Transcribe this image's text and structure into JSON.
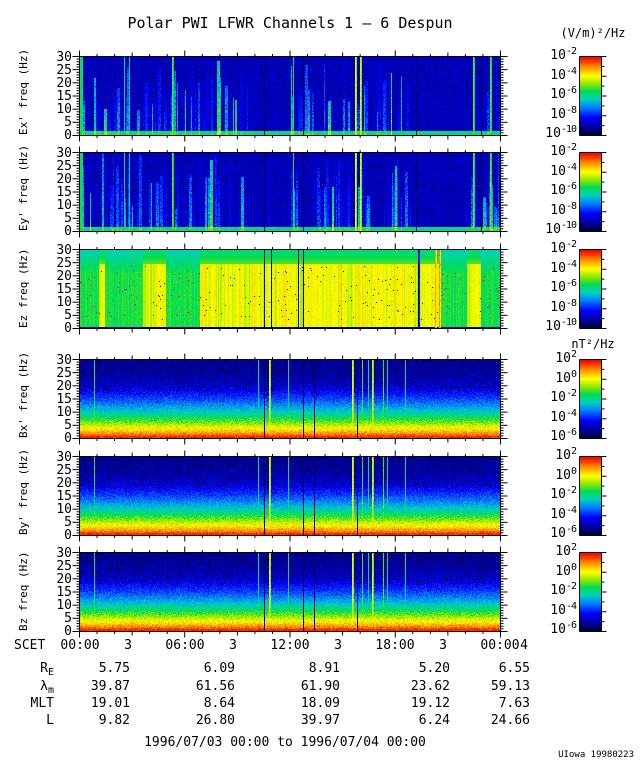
{
  "title": "Polar PWI LFWR Channels 1 — 6 Despun",
  "credit": "UIowa 19980223",
  "colorbar_units": {
    "electric": "(V/m)²/Hz",
    "magnetic": "nT²/Hz"
  },
  "chart_data": {
    "type": "heatmap",
    "subtype": "spectrogram-stack",
    "title": "Polar PWI LFWR Channels 1 — 6 Despun",
    "time_range_text": "1996/07/03 00:00 to 1996/07/04 00:00",
    "x_axis": {
      "label": "SCET",
      "start": "1996/07/03 00:00",
      "end": "1996/07/04 00:00",
      "hours_span": 24,
      "major_tick_hours": 6,
      "minor_tick_hours": 1,
      "tick_labels": [
        {
          "time": "00:00",
          "day": "3"
        },
        {
          "time": "06:00",
          "day": "3"
        },
        {
          "time": "12:00",
          "day": "3"
        },
        {
          "time": "18:00",
          "day": "3"
        },
        {
          "time": "00:00",
          "day": "4"
        }
      ]
    },
    "y_axis": {
      "label": "freq (Hz)",
      "min": 0,
      "max": 30,
      "major_ticks": [
        30,
        25,
        20,
        15,
        10,
        5,
        0
      ],
      "minor_tick_step": 1
    },
    "panels": [
      {
        "name": "Ex'",
        "ylabel": "Ex' freq (Hz)",
        "units": "(V/m)²/Hz",
        "colorbar_exponents": [
          "-2",
          "-4",
          "-6",
          "-8",
          "-10"
        ],
        "colorbar_range": [
          "1e-2",
          "1e-10"
        ],
        "render": {
          "style": "e_dark",
          "seed": 11,
          "quiet": [
            [
              0.4,
              0.5,
              0.35
            ],
            [
              0.79,
              0.93,
              0.3
            ]
          ],
          "bright": [
            [
              0.004,
              0.55
            ],
            [
              0.105,
              0.5
            ],
            [
              0.117,
              0.45
            ],
            [
              0.22,
              0.62
            ],
            [
              0.507,
              0.55
            ],
            [
              0.655,
              0.75
            ],
            [
              0.667,
              0.72
            ],
            [
              0.935,
              0.62
            ],
            [
              0.975,
              0.62
            ]
          ],
          "dark": [
            0.437,
            0.53,
            0.8,
            0.955
          ]
        }
      },
      {
        "name": "Ey'",
        "ylabel": "Ey' freq (Hz)",
        "units": "(V/m)²/Hz",
        "colorbar_exponents": [
          "-2",
          "-4",
          "-6",
          "-8",
          "-10"
        ],
        "colorbar_range": [
          "1e-2",
          "1e-10"
        ],
        "render": {
          "style": "e_dark",
          "seed": 29,
          "quiet": [
            [
              0.4,
              0.5,
              0.35
            ],
            [
              0.79,
              0.93,
              0.3
            ]
          ],
          "bright": [
            [
              0.004,
              0.55
            ],
            [
              0.105,
              0.5
            ],
            [
              0.117,
              0.45
            ],
            [
              0.22,
              0.62
            ],
            [
              0.507,
              0.55
            ],
            [
              0.655,
              0.75
            ],
            [
              0.667,
              0.72
            ],
            [
              0.935,
              0.62
            ],
            [
              0.975,
              0.62
            ]
          ],
          "dark": [
            0.437,
            0.53,
            0.8,
            0.955
          ]
        }
      },
      {
        "name": "Ez",
        "ylabel": "Ez freq (Hz)",
        "units": "(V/m)²/Hz",
        "colorbar_exponents": [
          "-2",
          "-4",
          "-6",
          "-8",
          "-10"
        ],
        "colorbar_range": [
          "1e-2",
          "1e-10"
        ],
        "render": {
          "style": "e_bright",
          "seed": 47,
          "green": [
            [
              0.0,
              0.045
            ],
            [
              0.06,
              0.15
            ],
            [
              0.205,
              0.285
            ],
            [
              0.86,
              0.92
            ],
            [
              0.955,
              1.0
            ]
          ],
          "blue": [
            0.805
          ],
          "bright": [
            [
              0.845,
              0.86
            ],
            [
              0.855,
              0.88
            ]
          ],
          "dark": [
            0.437,
            0.455,
            0.52,
            0.53
          ]
        }
      },
      {
        "name": "Bx'",
        "ylabel": "Bx' freq (Hz)",
        "units": "nT²/Hz",
        "colorbar_exponents": [
          "2",
          "0",
          "-2",
          "-4",
          "-6"
        ],
        "colorbar_range": [
          "1e2",
          "1e-6"
        ],
        "render": {
          "style": "b_grad",
          "seed": 71,
          "bright": [
            [
              0.033,
              0.58
            ],
            [
              0.424,
              0.5
            ],
            [
              0.449,
              0.74
            ],
            [
              0.495,
              0.55
            ],
            [
              0.647,
              0.74
            ],
            [
              0.671,
              0.6
            ],
            [
              0.686,
              0.55
            ],
            [
              0.695,
              0.72
            ],
            [
              0.722,
              0.6
            ],
            [
              0.731,
              0.55
            ],
            [
              0.774,
              0.5
            ]
          ],
          "dark": [
            0.437,
            0.53,
            0.558,
            0.66
          ]
        }
      },
      {
        "name": "By'",
        "ylabel": "By' freq (Hz)",
        "units": "nT²/Hz",
        "colorbar_exponents": [
          "2",
          "0",
          "-2",
          "-4",
          "-6"
        ],
        "colorbar_range": [
          "1e2",
          "1e-6"
        ],
        "render": {
          "style": "b_grad",
          "seed": 83,
          "bright": [
            [
              0.033,
              0.58
            ],
            [
              0.424,
              0.5
            ],
            [
              0.449,
              0.74
            ],
            [
              0.495,
              0.55
            ],
            [
              0.647,
              0.74
            ],
            [
              0.671,
              0.6
            ],
            [
              0.686,
              0.55
            ],
            [
              0.695,
              0.72
            ],
            [
              0.722,
              0.6
            ],
            [
              0.731,
              0.55
            ],
            [
              0.774,
              0.5
            ]
          ],
          "dark": [
            0.437,
            0.53,
            0.558,
            0.66
          ]
        }
      },
      {
        "name": "Bz",
        "ylabel": "Bz freq (Hz)",
        "units": "nT²/Hz",
        "colorbar_exponents": [
          "2",
          "0",
          "-2",
          "-4",
          "-6"
        ],
        "colorbar_range": [
          "1e2",
          "1e-6"
        ],
        "render": {
          "style": "b_grad",
          "seed": 97,
          "bright": [
            [
              0.033,
              0.58
            ],
            [
              0.424,
              0.5
            ],
            [
              0.449,
              0.74
            ],
            [
              0.495,
              0.55
            ],
            [
              0.647,
              0.74
            ],
            [
              0.671,
              0.6
            ],
            [
              0.686,
              0.55
            ],
            [
              0.695,
              0.72
            ],
            [
              0.722,
              0.6
            ],
            [
              0.731,
              0.55
            ],
            [
              0.774,
              0.5
            ]
          ],
          "dark": [
            0.437,
            0.53,
            0.558,
            0.66
          ]
        }
      }
    ],
    "ephemeris": {
      "x_label_prefix": "SCET",
      "rows": [
        {
          "id": "re",
          "label": "R",
          "sub": "E",
          "values": [
            "5.75",
            "6.09",
            "8.91",
            "5.20",
            "6.55"
          ]
        },
        {
          "id": "lambda",
          "label": "λ",
          "sub": "m",
          "values": [
            "39.87",
            "61.56",
            "61.90",
            "23.62",
            "59.13"
          ]
        },
        {
          "id": "mlt",
          "label": "MLT",
          "sub": "",
          "values": [
            "19.01",
            "8.64",
            "18.09",
            "19.12",
            "7.63"
          ]
        },
        {
          "id": "l",
          "label": "L",
          "sub": "",
          "values": [
            "9.82",
            "26.80",
            "39.97",
            "6.24",
            "24.66"
          ]
        }
      ]
    }
  }
}
